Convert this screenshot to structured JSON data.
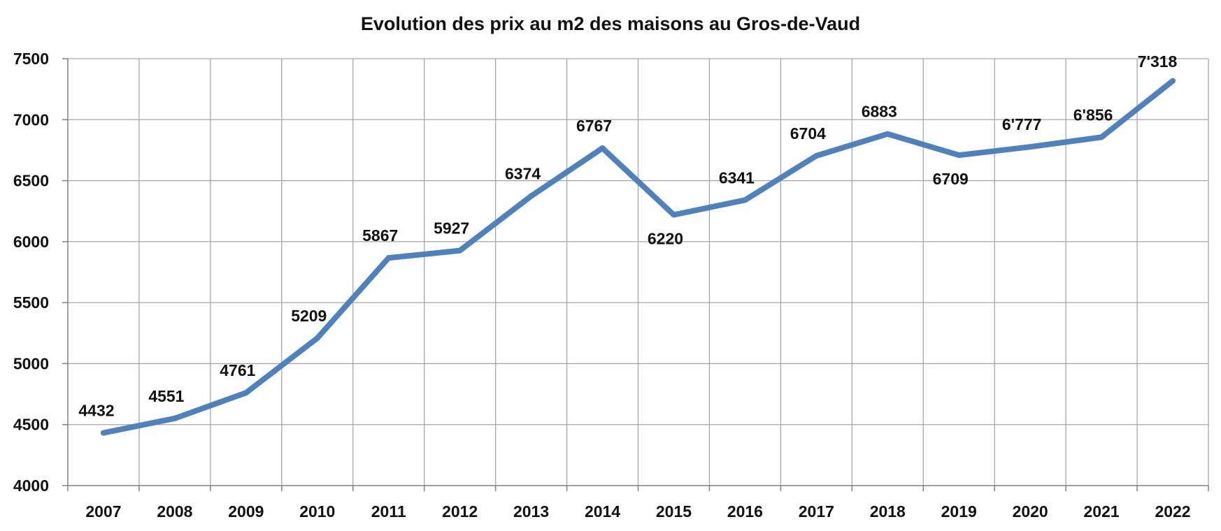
{
  "chart_data": {
    "type": "line",
    "title": "Evolution des prix au m2 des maisons au Gros-de-Vaud",
    "xlabel": "",
    "ylabel": "",
    "ylim": [
      4000,
      7500
    ],
    "y_ticks": [
      4000,
      4500,
      5000,
      5500,
      6000,
      6500,
      7000,
      7500
    ],
    "y_tick_labels": [
      "4000",
      "4500",
      "5000",
      "5500",
      "6000",
      "6500",
      "7000",
      "7500"
    ],
    "categories": [
      "2007",
      "2008",
      "2009",
      "2010",
      "2011",
      "2012",
      "2013",
      "2014",
      "2015",
      "2016",
      "2017",
      "2018",
      "2019",
      "2020",
      "2021",
      "2022"
    ],
    "series": [
      {
        "values": [
          4432,
          4551,
          4761,
          5209,
          5867,
          5927,
          6374,
          6767,
          6220,
          6341,
          6704,
          6883,
          6709,
          6777,
          6856,
          7318
        ],
        "data_labels": [
          "4432",
          "4551",
          "4761",
          "5209",
          "5867",
          "5927",
          "6374",
          "6767",
          "6220",
          "6341",
          "6704",
          "6883",
          "6709",
          "6'777",
          "6'856",
          "7'318"
        ],
        "label_positions": [
          "above",
          "above",
          "above",
          "above",
          "above",
          "above",
          "above",
          "above",
          "below",
          "above",
          "above",
          "above",
          "below",
          "above",
          "above",
          "above"
        ],
        "color": "#4F81BD"
      }
    ],
    "grid": true,
    "gridline_color": "#A6A6A6",
    "axis_color": "#808080",
    "legend": "none"
  }
}
